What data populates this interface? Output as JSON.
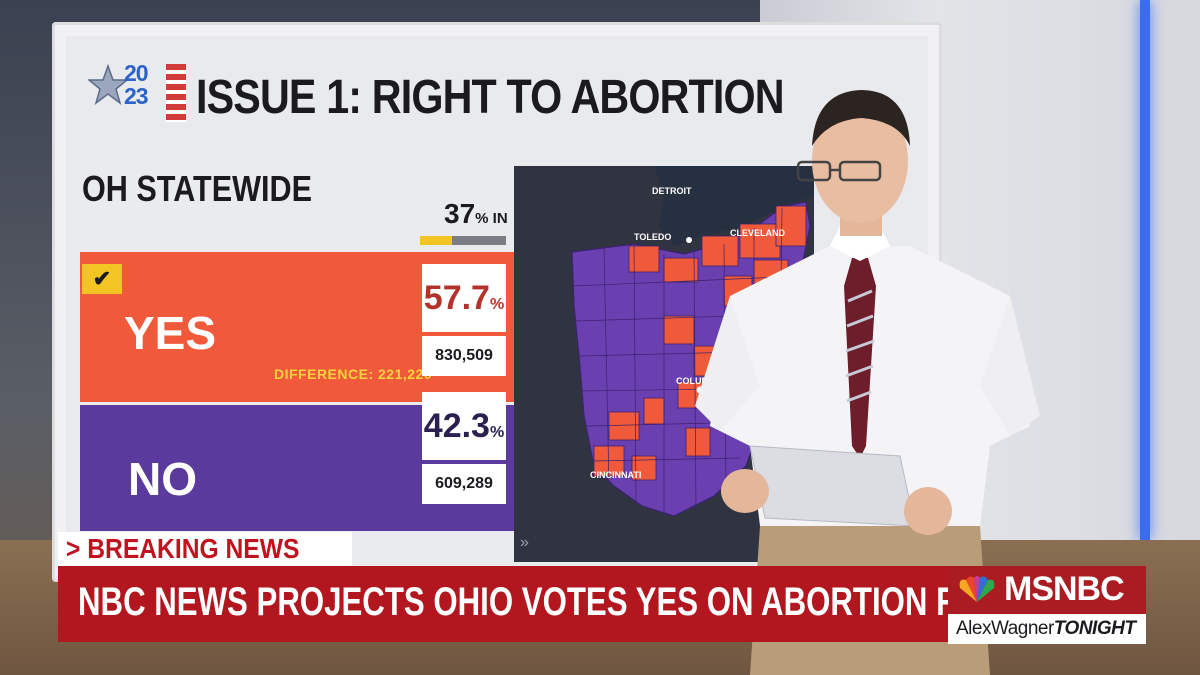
{
  "graphic": {
    "logo_year": [
      "20",
      "23"
    ],
    "headline": "ISSUE 1: RIGHT TO ABORTION",
    "region": "OH STATEWIDE",
    "reporting_value": "37",
    "reporting_unit": "% IN",
    "reporting_fraction": 0.37,
    "colors": {
      "yes": "#f05a3a",
      "no": "#5a3a9c",
      "accent": "#f3c522"
    },
    "yes": {
      "label": "YES",
      "percent": "57.7",
      "votes": "830,509",
      "winner_check": "check-icon"
    },
    "no": {
      "label": "NO",
      "percent": "42.3",
      "votes": "609,289"
    },
    "difference": "DIFFERENCE: 221,220",
    "percent_sign": "%",
    "map_cities": [
      "DETROIT",
      "TOLEDO",
      "CLEVELAND",
      "COLUMBUS",
      "CINCINNATI"
    ]
  },
  "lower_third": {
    "tag": "> BREAKING NEWS",
    "headline": "NBC NEWS PROJECTS OHIO VOTES YES ON ABORTION RIGHTS",
    "network": "MSNBC",
    "show_first": "AlexWagner",
    "show_second": "TONIGHT"
  }
}
